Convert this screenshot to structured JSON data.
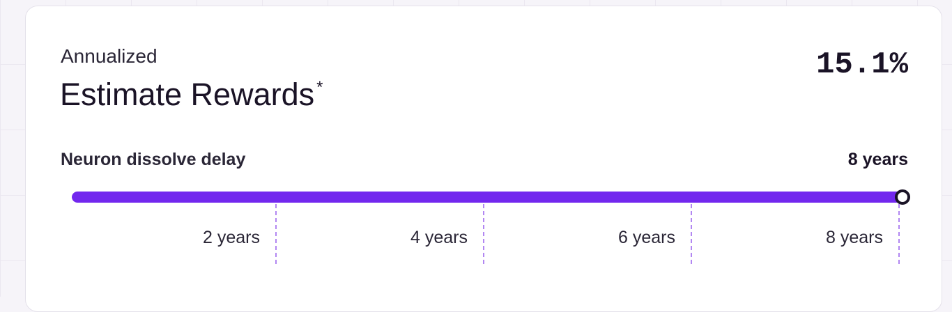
{
  "card": {
    "subtitle": "Annualized",
    "title": "Estimate Rewards",
    "title_marker": "*",
    "rate": "15.1%"
  },
  "slider": {
    "label": "Neuron dissolve delay",
    "value_label": "8 years",
    "value_years": 8,
    "min_years": 0,
    "max_years": 8,
    "accent_color": "#7227ee",
    "ticks": [
      {
        "years": 2,
        "label": "2 years"
      },
      {
        "years": 4,
        "label": "4 years"
      },
      {
        "years": 6,
        "label": "6 years"
      },
      {
        "years": 8,
        "label": "8 years"
      }
    ]
  }
}
